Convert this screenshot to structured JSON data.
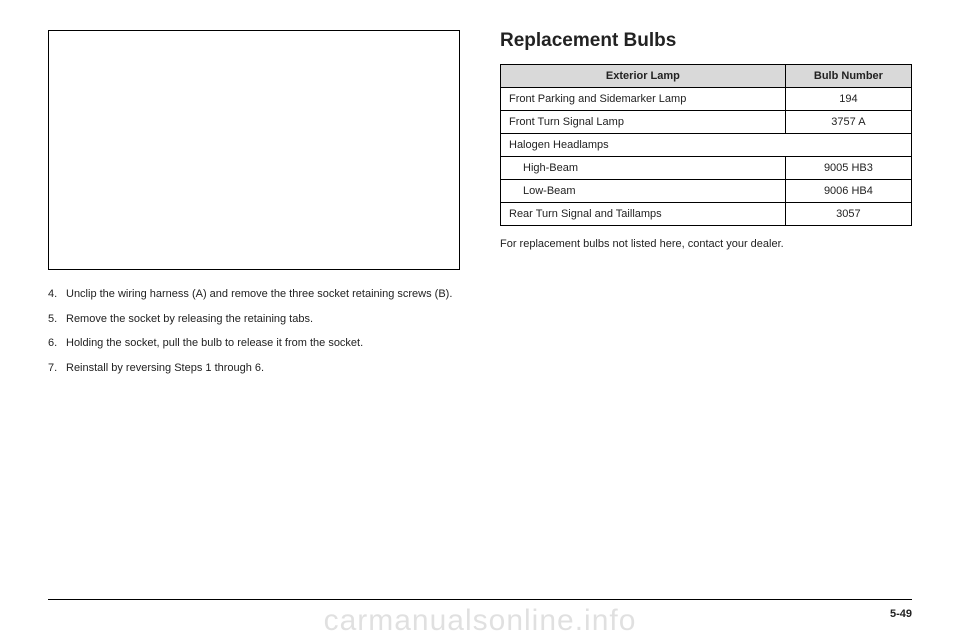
{
  "left": {
    "steps": [
      {
        "n": "4.",
        "t": "Unclip the wiring harness (A) and remove the three socket retaining screws (B)."
      },
      {
        "n": "5.",
        "t": "Remove the socket by releasing the retaining tabs."
      },
      {
        "n": "6.",
        "t": "Holding the socket, pull the bulb to release it from the socket."
      },
      {
        "n": "7.",
        "t": "Reinstall by reversing Steps 1 through 6."
      }
    ]
  },
  "right": {
    "title": "Replacement Bulbs",
    "headers": [
      "Exterior Lamp",
      "Bulb Number"
    ],
    "rows": [
      {
        "label": "Front Parking and Sidemarker Lamp",
        "value": "194",
        "indent": false,
        "colspan": false
      },
      {
        "label": "Front Turn Signal Lamp",
        "value": "3757 A",
        "indent": false,
        "colspan": false
      },
      {
        "label": "Halogen Headlamps",
        "value": "",
        "indent": false,
        "colspan": true
      },
      {
        "label": "High-Beam",
        "value": "9005 HB3",
        "indent": true,
        "colspan": false
      },
      {
        "label": "Low-Beam",
        "value": "9006 HB4",
        "indent": true,
        "colspan": false
      },
      {
        "label": "Rear Turn Signal and Taillamps",
        "value": "3057",
        "indent": false,
        "colspan": false
      }
    ],
    "note": "For replacement bulbs not listed here, contact your dealer."
  },
  "pageNumber": "5-49",
  "watermark": "carmanualsonline.info"
}
